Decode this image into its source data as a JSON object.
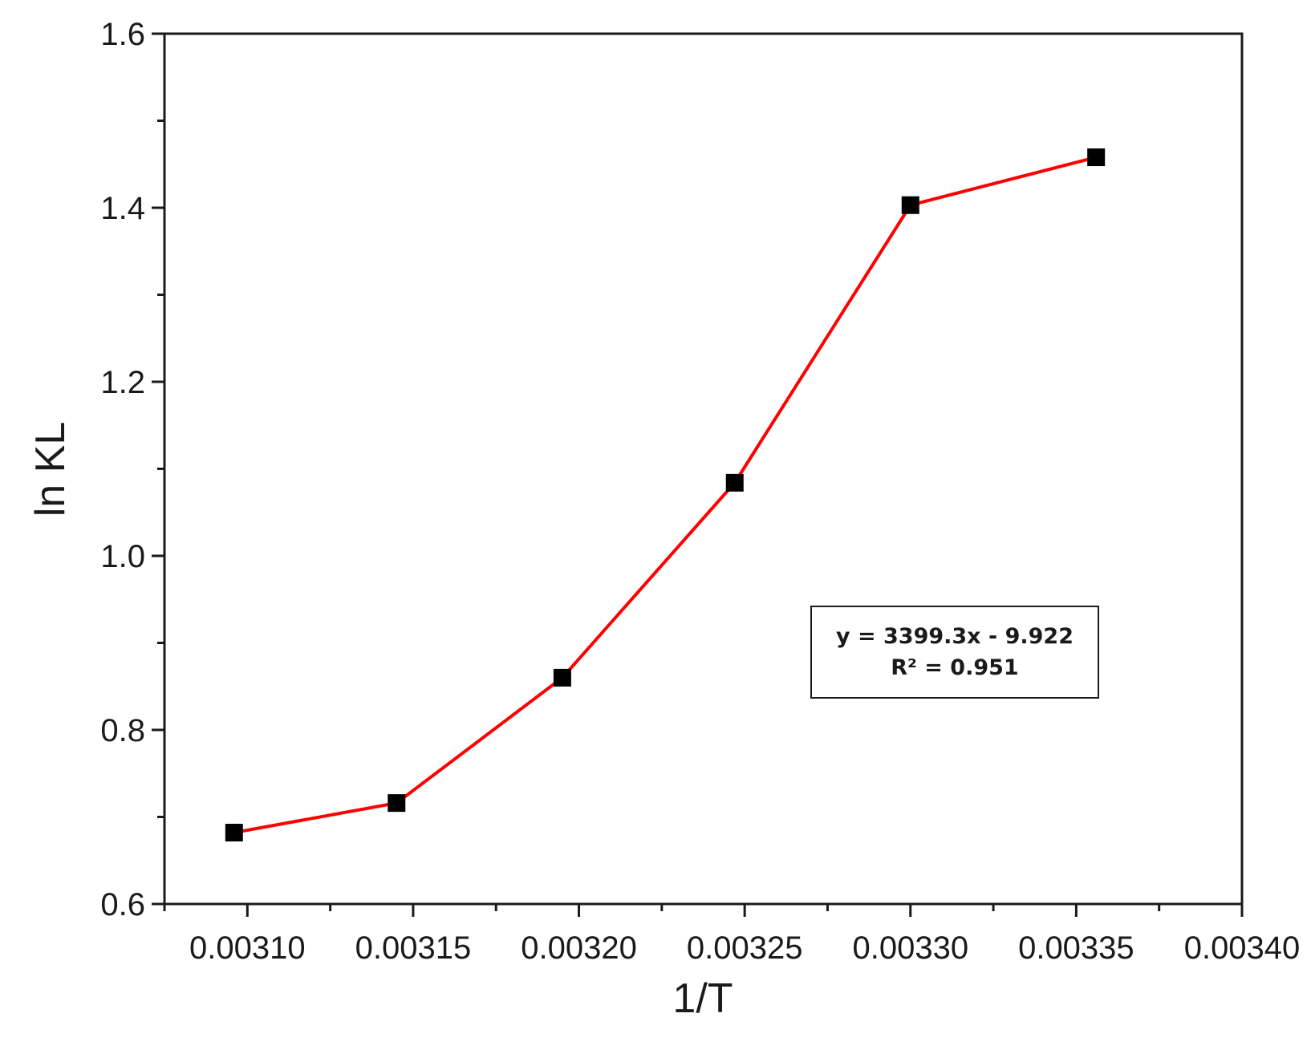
{
  "chart_data": {
    "type": "line",
    "xlabel": "1/T",
    "ylabel": "ln KL",
    "xlim": [
      0.003075,
      0.0034
    ],
    "ylim": [
      0.6,
      1.6
    ],
    "x_ticks": [
      "0.00310",
      "0.00315",
      "0.00320",
      "0.00325",
      "0.00330",
      "0.00335",
      "0.00340"
    ],
    "y_ticks": [
      "0.6",
      "0.8",
      "1.0",
      "1.2",
      "1.4",
      "1.6"
    ],
    "grid": false,
    "line_color": "#ff0000",
    "marker_color": "#000000",
    "marker": "square",
    "series": [
      {
        "x": [
          0.003096,
          0.003145,
          0.003195,
          0.003247,
          0.0033,
          0.003356
        ],
        "y": [
          0.682,
          0.716,
          0.86,
          1.084,
          1.403,
          1.458
        ]
      }
    ],
    "annotation": {
      "equation": "y = 3399.3x - 9.922",
      "r_squared": "R² = 0.951"
    }
  }
}
